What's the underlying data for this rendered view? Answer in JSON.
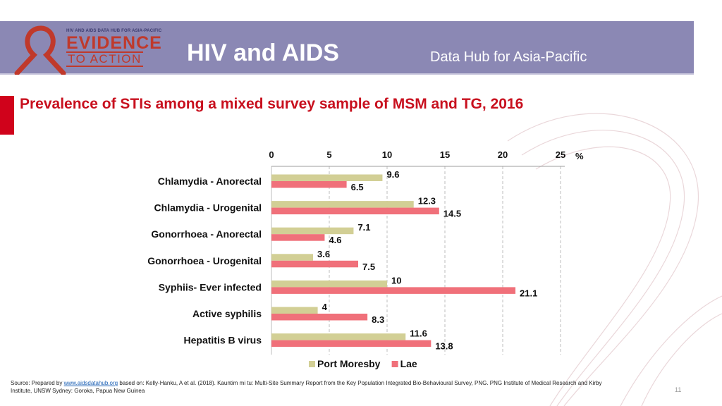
{
  "header": {
    "logo_top": "HIV AND AIDS DATA HUB FOR ASIA-PACIFIC",
    "logo_line1": "EVIDENCE",
    "logo_line2": "TO ACTION",
    "title": "HIV and AIDS",
    "subtitle": "Data Hub for Asia-Pacific"
  },
  "slide": {
    "title": "Prevalence of STIs among a mixed survey sample of MSM and TG, 2016",
    "page_number": "11"
  },
  "source": {
    "prefix": "Source: Prepared by ",
    "link": "www.aidsdatahub.org",
    "rest": "  based on: Kelly-Hanku, A et al. (2018). Kauntim mi tu: Multi-Site Summary Report from the Key Population Integrated Bio-Behavioural Survey, PNG. PNG Institute of Medical Research and Kirby Institute, UNSW Sydney: Goroka, Papua New Guinea"
  },
  "colors": {
    "header": "#8b88b4",
    "title_red": "#c8101e",
    "port_moresby": "#d2cf95",
    "lae": "#f0707a"
  },
  "chart_data": {
    "type": "bar",
    "orientation": "horizontal",
    "categories": [
      "Chlamydia - Anorectal",
      "Chlamydia - Urogenital",
      "Gonorrhoea - Anorectal",
      "Gonorrhoea - Urogenital",
      "Syphiis- Ever infected",
      "Active syphilis",
      "Hepatitis B virus"
    ],
    "series": [
      {
        "name": "Port Moresby",
        "color": "#d2cf95",
        "values": [
          9.6,
          12.3,
          7.1,
          3.6,
          10,
          4,
          11.6
        ]
      },
      {
        "name": "Lae",
        "color": "#f0707a",
        "values": [
          6.5,
          14.5,
          4.6,
          7.5,
          21.1,
          8.3,
          13.8
        ]
      }
    ],
    "xlim": [
      0,
      25
    ],
    "xticks": [
      0,
      5,
      10,
      15,
      20,
      25
    ],
    "x_unit": "%",
    "axis_position": "top",
    "grid": true,
    "legend": "bottom"
  }
}
